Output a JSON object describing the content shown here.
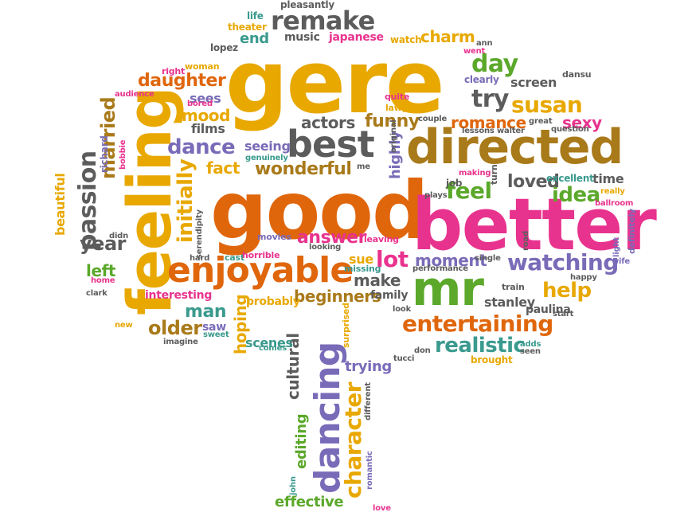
{
  "word_cloud": {
    "palette": {
      "gold": "#E8A800",
      "orange": "#E0660C",
      "brown": "#A97A1A",
      "gray": "#5C5C5C",
      "pink": "#E8338E",
      "green": "#5BA82A",
      "purple": "#7A6BB8",
      "teal": "#3A9A8E"
    },
    "words": [
      {
        "text": "gere",
        "color": "gold"
      },
      {
        "text": "good",
        "color": "orange"
      },
      {
        "text": "better",
        "color": "pink"
      },
      {
        "text": "feeling",
        "color": "gold"
      },
      {
        "text": "directed",
        "color": "brown"
      },
      {
        "text": "mr",
        "color": "green"
      },
      {
        "text": "enjoyable",
        "color": "orange"
      },
      {
        "text": "best",
        "color": "gray"
      },
      {
        "text": "dancing",
        "color": "purple"
      },
      {
        "text": "remake",
        "color": "gray"
      },
      {
        "text": "entertaining",
        "color": "orange"
      },
      {
        "text": "watching",
        "color": "purple"
      },
      {
        "text": "realistic",
        "color": "teal"
      },
      {
        "text": "character",
        "color": "gold"
      },
      {
        "text": "susan",
        "color": "gold"
      },
      {
        "text": "passion",
        "color": "gray"
      },
      {
        "text": "initially",
        "color": "gold"
      },
      {
        "text": "try",
        "color": "gray"
      },
      {
        "text": "daughter",
        "color": "orange"
      },
      {
        "text": "dance",
        "color": "purple"
      },
      {
        "text": "wonderful",
        "color": "brown"
      },
      {
        "text": "answer",
        "color": "pink"
      },
      {
        "text": "lot",
        "color": "pink"
      },
      {
        "text": "feel",
        "color": "green"
      },
      {
        "text": "idea",
        "color": "green"
      },
      {
        "text": "day",
        "color": "green"
      },
      {
        "text": "funny",
        "color": "brown"
      },
      {
        "text": "romance",
        "color": "orange"
      },
      {
        "text": "older",
        "color": "brown"
      },
      {
        "text": "help",
        "color": "gold"
      },
      {
        "text": "married",
        "color": "brown"
      },
      {
        "text": "year",
        "color": "gray"
      },
      {
        "text": "loved",
        "color": "gray"
      },
      {
        "text": "moment",
        "color": "purple"
      },
      {
        "text": "make",
        "color": "gray"
      },
      {
        "text": "beginners",
        "color": "brown"
      },
      {
        "text": "man",
        "color": "teal"
      },
      {
        "text": "effective",
        "color": "green"
      },
      {
        "text": "trying",
        "color": "purple"
      },
      {
        "text": "charm",
        "color": "gold"
      },
      {
        "text": "actors",
        "color": "gray"
      },
      {
        "text": "mood",
        "color": "gold"
      },
      {
        "text": "fact",
        "color": "gold"
      },
      {
        "text": "cultural",
        "color": "gray"
      },
      {
        "text": "sexy",
        "color": "pink"
      },
      {
        "text": "stanley",
        "color": "gray"
      },
      {
        "text": "screen",
        "color": "gray"
      },
      {
        "text": "seeing",
        "color": "purple"
      },
      {
        "text": "editing",
        "color": "green"
      },
      {
        "text": "highly",
        "color": "purple"
      },
      {
        "text": "left",
        "color": "green"
      },
      {
        "text": "end",
        "color": "teal"
      },
      {
        "text": "music",
        "color": "gray"
      },
      {
        "text": "japanese",
        "color": "pink"
      },
      {
        "text": "hoping",
        "color": "gold"
      },
      {
        "text": "sees",
        "color": "purple"
      },
      {
        "text": "films",
        "color": "gray"
      },
      {
        "text": "scenes",
        "color": "teal"
      },
      {
        "text": "saw",
        "color": "purple"
      },
      {
        "text": "family",
        "color": "gray"
      },
      {
        "text": "probably",
        "color": "gold"
      },
      {
        "text": "interesting",
        "color": "pink"
      },
      {
        "text": "time",
        "color": "gray"
      },
      {
        "text": "beautiful",
        "color": "gold"
      },
      {
        "text": "sue",
        "color": "gold"
      },
      {
        "text": "job",
        "color": "gray"
      },
      {
        "text": "paulina",
        "color": "gray"
      },
      {
        "text": "clearly",
        "color": "purple"
      },
      {
        "text": "excellent",
        "color": "teal"
      },
      {
        "text": "richard",
        "color": "purple"
      },
      {
        "text": "life",
        "color": "teal"
      },
      {
        "text": "pleasantly",
        "color": "gray"
      },
      {
        "text": "theater",
        "color": "gold"
      },
      {
        "text": "watch",
        "color": "gold"
      },
      {
        "text": "lopez",
        "color": "gray"
      },
      {
        "text": "ann",
        "color": "gray"
      },
      {
        "text": "went",
        "color": "pink"
      },
      {
        "text": "woman",
        "color": "gold"
      },
      {
        "text": "right",
        "color": "pink"
      },
      {
        "text": "audience",
        "color": "pink"
      },
      {
        "text": "bored",
        "color": "pink"
      },
      {
        "text": "quite",
        "color": "pink"
      },
      {
        "text": "lawyer",
        "color": "gold"
      },
      {
        "text": "couple",
        "color": "gray"
      },
      {
        "text": "great",
        "color": "gray"
      },
      {
        "text": "dansu",
        "color": "gray"
      },
      {
        "text": "question",
        "color": "gray"
      },
      {
        "text": "lessons",
        "color": "gray"
      },
      {
        "text": "walter",
        "color": "gray"
      },
      {
        "text": "genuinely",
        "color": "teal"
      },
      {
        "text": "me",
        "color": "gray"
      },
      {
        "text": "original",
        "color": "gray"
      },
      {
        "text": "making",
        "color": "pink"
      },
      {
        "text": "turn",
        "color": "gray"
      },
      {
        "text": "plays",
        "color": "gray"
      },
      {
        "text": "really",
        "color": "gold"
      },
      {
        "text": "ballroom",
        "color": "pink"
      },
      {
        "text": "definitely",
        "color": "purple"
      },
      {
        "text": "bobbie",
        "color": "pink"
      },
      {
        "text": "serendipity",
        "color": "gray"
      },
      {
        "text": "movies",
        "color": "purple"
      },
      {
        "text": "leaving",
        "color": "pink"
      },
      {
        "text": "looking",
        "color": "gray"
      },
      {
        "text": "didn",
        "color": "gray"
      },
      {
        "text": "hard",
        "color": "gray"
      },
      {
        "text": "cast",
        "color": "teal"
      },
      {
        "text": "horrible",
        "color": "pink"
      },
      {
        "text": "missing",
        "color": "teal"
      },
      {
        "text": "performance",
        "color": "gray"
      },
      {
        "text": "single",
        "color": "gray"
      },
      {
        "text": "road",
        "color": "gray"
      },
      {
        "text": "light",
        "color": "purple"
      },
      {
        "text": "wife",
        "color": "purple"
      },
      {
        "text": "happy",
        "color": "gray"
      },
      {
        "text": "train",
        "color": "gray"
      },
      {
        "text": "home",
        "color": "pink"
      },
      {
        "text": "clark",
        "color": "gray"
      },
      {
        "text": "look",
        "color": "gray"
      },
      {
        "text": "start",
        "color": "gray"
      },
      {
        "text": "new",
        "color": "gold"
      },
      {
        "text": "imagine",
        "color": "gray"
      },
      {
        "text": "sweet",
        "color": "teal"
      },
      {
        "text": "comes",
        "color": "teal"
      },
      {
        "text": "surprised",
        "color": "gold"
      },
      {
        "text": "don",
        "color": "gray"
      },
      {
        "text": "tucci",
        "color": "gray"
      },
      {
        "text": "adds",
        "color": "teal"
      },
      {
        "text": "seen",
        "color": "gray"
      },
      {
        "text": "brought",
        "color": "gold"
      },
      {
        "text": "different",
        "color": "gray"
      },
      {
        "text": "john",
        "color": "teal"
      },
      {
        "text": "romantic",
        "color": "purple"
      },
      {
        "text": "love",
        "color": "pink"
      }
    ],
    "trunk_color": "purple"
  }
}
